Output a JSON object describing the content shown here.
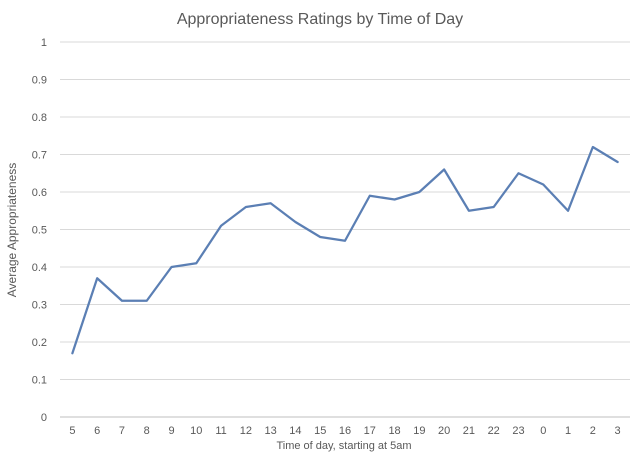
{
  "chart_data": {
    "type": "line",
    "title": "Appropriateness Ratings by Time of Day",
    "xlabel": "Time of day, starting at 5am",
    "ylabel": "Average Appropriateness",
    "ylim": [
      0,
      1
    ],
    "yticks": [
      "0",
      "0.1",
      "0.2",
      "0.3",
      "0.4",
      "0.5",
      "0.6",
      "0.7",
      "0.8",
      "0.9",
      "1"
    ],
    "grid": true,
    "legend": "none",
    "categories": [
      "5",
      "6",
      "7",
      "8",
      "9",
      "10",
      "11",
      "12",
      "13",
      "14",
      "15",
      "16",
      "17",
      "18",
      "19",
      "20",
      "21",
      "22",
      "23",
      "0",
      "1",
      "2",
      "3"
    ],
    "series": [
      {
        "color": "#5b7fb4",
        "values": [
          0.17,
          0.37,
          0.31,
          0.31,
          0.4,
          0.41,
          0.51,
          0.56,
          0.57,
          0.52,
          0.48,
          0.47,
          0.59,
          0.58,
          0.6,
          0.66,
          0.55,
          0.56,
          0.65,
          0.62,
          0.55,
          0.72,
          0.68
        ]
      }
    ]
  }
}
